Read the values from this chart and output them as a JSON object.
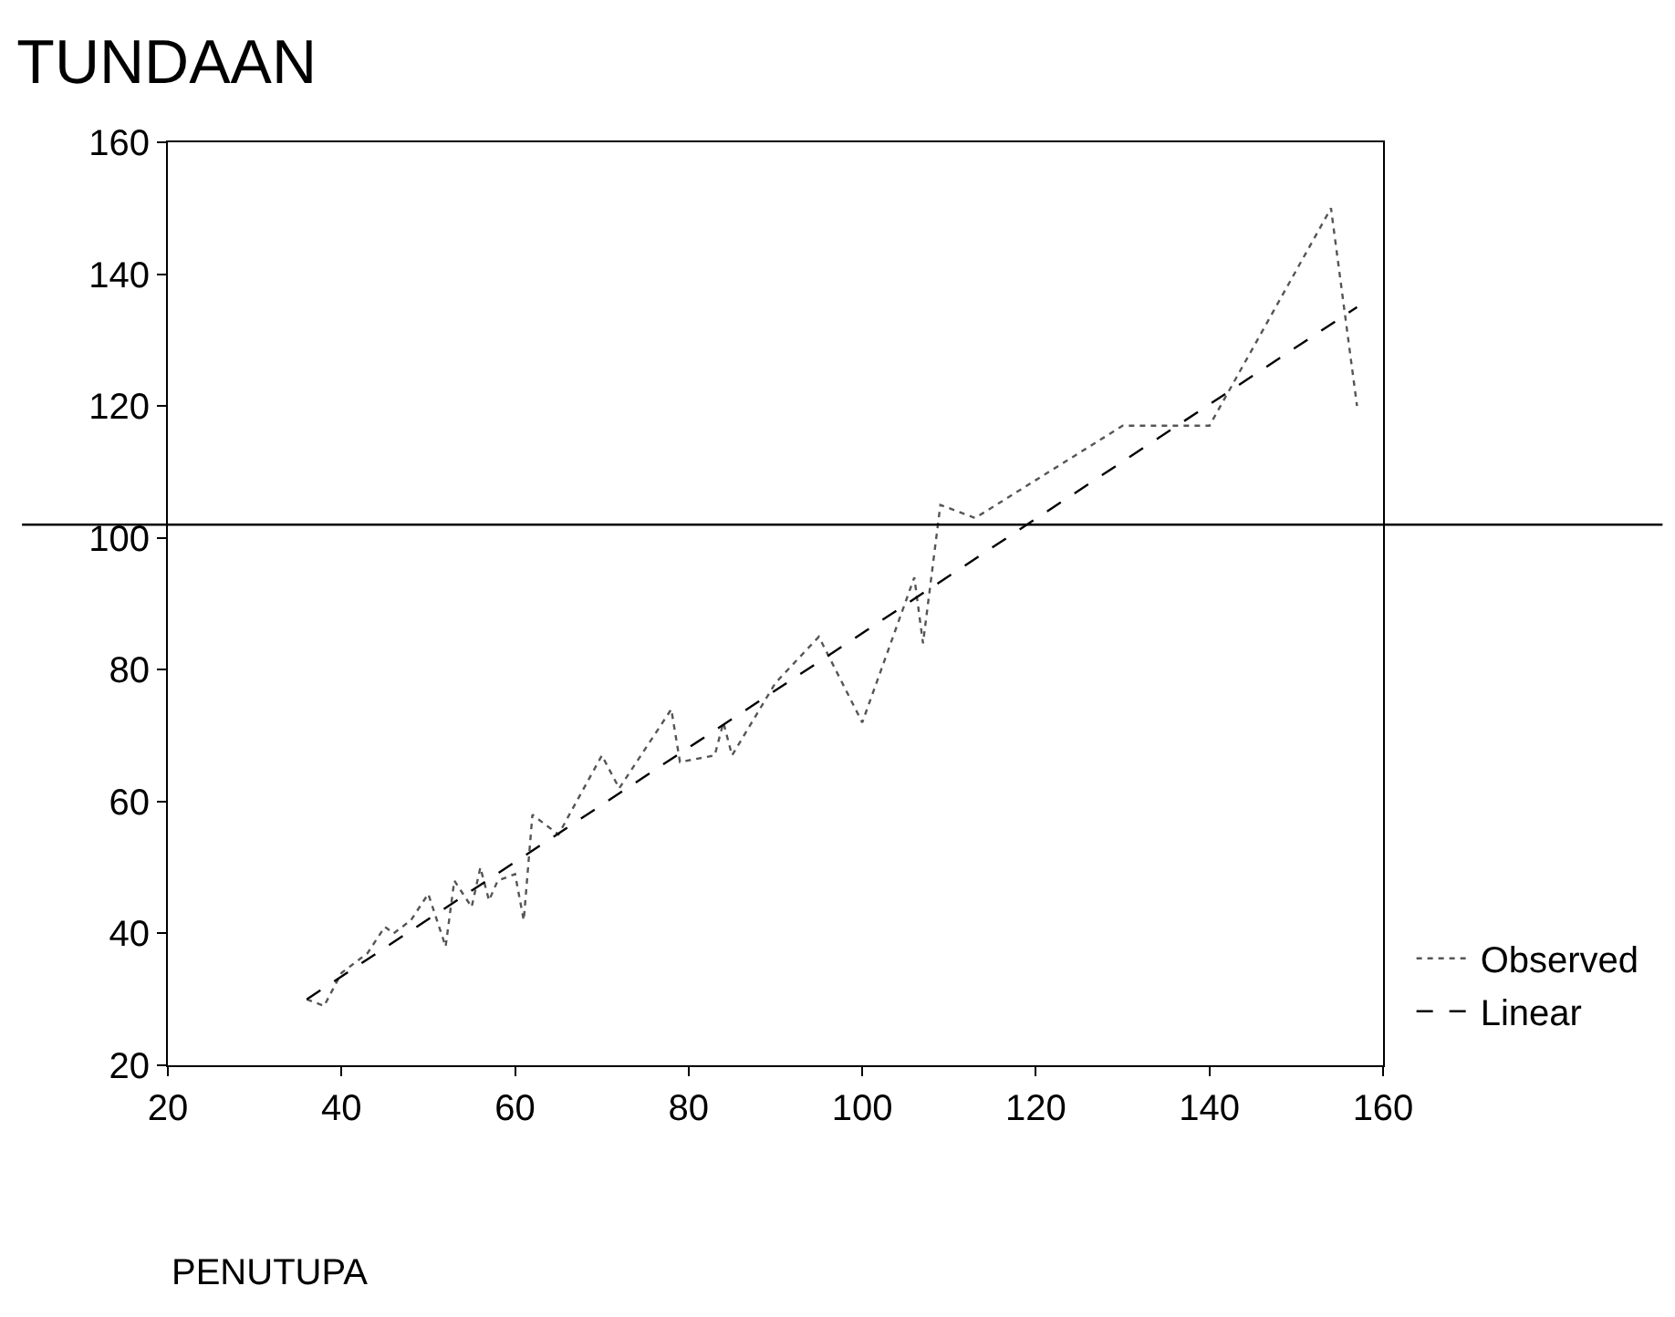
{
  "chart_data": {
    "type": "line",
    "title": "TUNDAAN",
    "xlabel": "PENUTUPA",
    "xlim": [
      20,
      160
    ],
    "ylim": [
      20,
      160
    ],
    "xticks": [
      20,
      40,
      60,
      80,
      100,
      120,
      140,
      160
    ],
    "yticks": [
      20,
      40,
      60,
      80,
      100,
      120,
      140,
      160
    ],
    "legend": "bottom right",
    "series": [
      {
        "name": "Observed",
        "color": "#555555",
        "line_style": "dotted",
        "x": [
          36,
          38,
          40,
          43,
          45,
          46,
          48,
          50,
          52,
          53,
          55,
          56,
          57,
          58,
          60,
          61,
          62,
          65,
          70,
          72,
          78,
          79,
          83,
          84,
          85,
          90,
          95,
          100,
          106,
          107,
          109,
          113,
          130,
          140,
          154,
          157
        ],
        "values": [
          30,
          29,
          34,
          37,
          41,
          40,
          42,
          46,
          38,
          48,
          44,
          50,
          45,
          48,
          49,
          42,
          58,
          55,
          67,
          62,
          74,
          66,
          67,
          72,
          67,
          78,
          85,
          72,
          94,
          84,
          105,
          103,
          117,
          117,
          150,
          120
        ]
      },
      {
        "name": "Linear",
        "color": "#000000",
        "line_style": "dashed",
        "x": [
          36,
          157
        ],
        "values": [
          30,
          135
        ]
      }
    ],
    "ref_lines": [
      {
        "axis": "y",
        "value": 102,
        "color": "#000000",
        "line_style": "solid"
      }
    ]
  }
}
